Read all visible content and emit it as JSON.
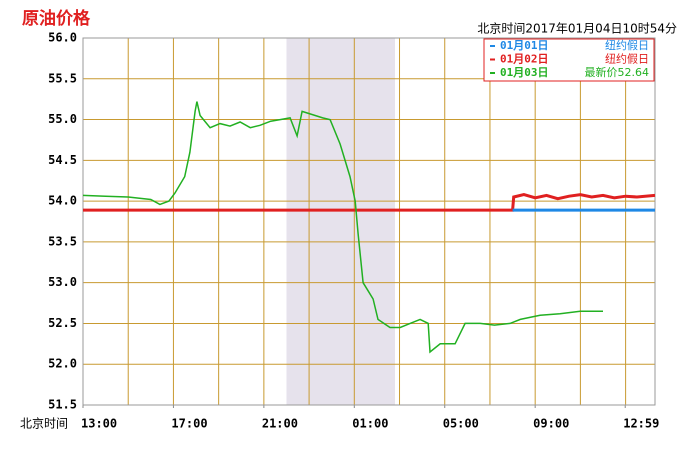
{
  "chart_data": {
    "type": "line",
    "title": "原油价格",
    "timestamp": "北京时间2017年01月04日10时54分",
    "x_prefix": "北京时间",
    "xlim": [
      0,
      25.3
    ],
    "ylim": [
      51.5,
      56
    ],
    "yticks": [
      {
        "value": 51.5,
        "label": "51.5"
      },
      {
        "value": 52,
        "label": "52.0"
      },
      52.5,
      {
        "value": 53,
        "label": "53.0"
      },
      53.5,
      {
        "value": 54,
        "label": "54.0"
      },
      54.5,
      {
        "value": 55,
        "label": "55.0"
      },
      55.5,
      {
        "value": 56,
        "label": "56.0"
      }
    ],
    "xticks": [
      {
        "value": 0,
        "label": "13:00"
      },
      {
        "value": 4,
        "label": "17:00"
      },
      {
        "value": 8,
        "label": "21:00"
      },
      {
        "value": 12,
        "label": "01:00"
      },
      {
        "value": 16,
        "label": "05:00"
      },
      {
        "value": 20,
        "label": "09:00"
      },
      {
        "value": 23.983,
        "label": "12:59"
      }
    ],
    "xgrid": [
      2,
      4,
      6,
      8,
      10,
      12,
      14,
      16,
      18,
      20,
      22,
      24
    ],
    "shade": [
      9,
      13.8
    ],
    "grid": true,
    "series": [
      {
        "name": "01月01日",
        "note": "纽约假日",
        "color": "#1e88e5",
        "x": [
          19.0,
          25.3
        ],
        "values": [
          53.89,
          53.89
        ]
      },
      {
        "name": "01月02日",
        "note": "纽约假日",
        "color": "#e02020",
        "x": [
          0,
          19.0,
          19.05,
          19.5,
          20,
          20.5,
          21,
          21.5,
          22,
          22.5,
          23,
          23.5,
          24,
          24.5,
          25.3
        ],
        "values": [
          53.89,
          53.89,
          54.05,
          54.08,
          54.04,
          54.07,
          54.03,
          54.06,
          54.08,
          54.05,
          54.07,
          54.04,
          54.06,
          54.05,
          54.07
        ]
      },
      {
        "name": "01月03日",
        "note": "最新价52.64",
        "color": "#22b022",
        "x": [
          0,
          1,
          2,
          3,
          3.4,
          3.8,
          4.07,
          4.5,
          4.73,
          4.96,
          5.04,
          5.18,
          5.62,
          6.06,
          6.5,
          6.95,
          7.4,
          7.83,
          8.3,
          8.72,
          9.16,
          9.47,
          9.69,
          10.27,
          10.6,
          10.93,
          11.37,
          11.81,
          12.04,
          12.17,
          12.39,
          12.61,
          12.83,
          13.05,
          13.58,
          14.03,
          14.47,
          14.91,
          15.27,
          15.35,
          15.8,
          16.46,
          16.9,
          17.57,
          18.2,
          18.89,
          19.34,
          20.22,
          21.1,
          21.99,
          23.0
        ],
        "values": [
          54.07,
          54.06,
          54.05,
          54.02,
          53.96,
          54.0,
          54.1,
          54.3,
          54.6,
          55.1,
          55.22,
          55.05,
          54.9,
          54.95,
          54.92,
          54.97,
          54.9,
          54.93,
          54.98,
          55.0,
          55.02,
          54.8,
          55.1,
          55.05,
          55.02,
          55.0,
          54.7,
          54.3,
          54.0,
          53.6,
          53.0,
          52.9,
          52.8,
          52.55,
          52.45,
          52.45,
          52.5,
          52.55,
          52.5,
          52.15,
          52.25,
          52.25,
          52.5,
          52.5,
          52.48,
          52.5,
          52.55,
          52.6,
          52.62,
          52.65,
          52.65
        ]
      }
    ]
  }
}
